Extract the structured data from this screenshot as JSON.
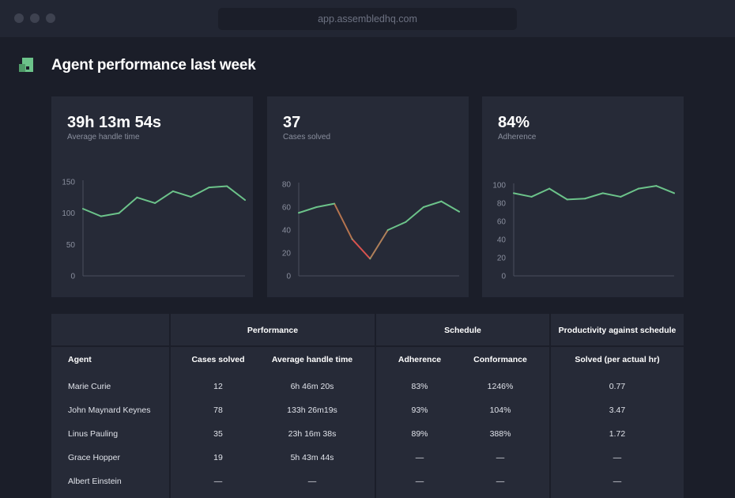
{
  "browser": {
    "url": "app.assembledhq.com"
  },
  "header": {
    "title": "Agent performance last week"
  },
  "colors": {
    "accent": "#6cc38a",
    "negative": "#d9534f",
    "background": "#1b1e29",
    "card": "#262a37"
  },
  "cards": [
    {
      "value": "39h 13m 54s",
      "label": "Average handle time",
      "chart_data": {
        "type": "line",
        "title": "Average handle time",
        "y_ticks": [
          "150",
          "100",
          "50",
          "0"
        ],
        "ylim": [
          0,
          150
        ],
        "values": [
          107,
          95,
          100,
          125,
          116,
          135,
          126,
          141,
          143,
          121
        ]
      }
    },
    {
      "value": "37",
      "label": "Cases solved",
      "chart_data": {
        "type": "line",
        "title": "Cases solved",
        "y_ticks": [
          "80",
          "60",
          "40",
          "20",
          "0"
        ],
        "ylim": [
          0,
          80
        ],
        "values": [
          55,
          60,
          63,
          32,
          15,
          40,
          47,
          60,
          65,
          56
        ]
      }
    },
    {
      "value": "84%",
      "label": "Adherence",
      "chart_data": {
        "type": "line",
        "title": "Adherence",
        "y_ticks": [
          "100",
          "80",
          "60",
          "40",
          "20",
          "0"
        ],
        "ylim": [
          0,
          100
        ],
        "values": [
          91,
          87,
          96,
          84,
          85,
          91,
          87,
          96,
          99,
          91
        ]
      }
    }
  ],
  "table": {
    "groups": {
      "performance": "Performance",
      "schedule": "Schedule",
      "productivity": "Productivity against schedule"
    },
    "columns": {
      "agent": "Agent",
      "cases_solved": "Cases solved",
      "aht": "Average handle time",
      "adherence": "Adherence",
      "conformance": "Conformance",
      "solved_per_hr": "Solved (per actual hr)"
    },
    "rows": [
      {
        "agent": "Marie Curie",
        "cases_solved": "12",
        "aht": "6h 46m 20s",
        "adherence": "83%",
        "conformance": "1246%",
        "solved_per_hr": "0.77"
      },
      {
        "agent": "John Maynard Keynes",
        "cases_solved": "78",
        "aht": "133h 26m19s",
        "adherence": "93%",
        "conformance": "104%",
        "solved_per_hr": "3.47"
      },
      {
        "agent": "Linus Pauling",
        "cases_solved": "35",
        "aht": "23h 16m 38s",
        "adherence": "89%",
        "conformance": "388%",
        "solved_per_hr": "1.72"
      },
      {
        "agent": "Grace Hopper",
        "cases_solved": "19",
        "aht": "5h 43m 44s",
        "adherence": "—",
        "conformance": "—",
        "solved_per_hr": "—"
      },
      {
        "agent": "Albert Einstein",
        "cases_solved": "—",
        "aht": "—",
        "adherence": "—",
        "conformance": "—",
        "solved_per_hr": "—"
      }
    ]
  }
}
